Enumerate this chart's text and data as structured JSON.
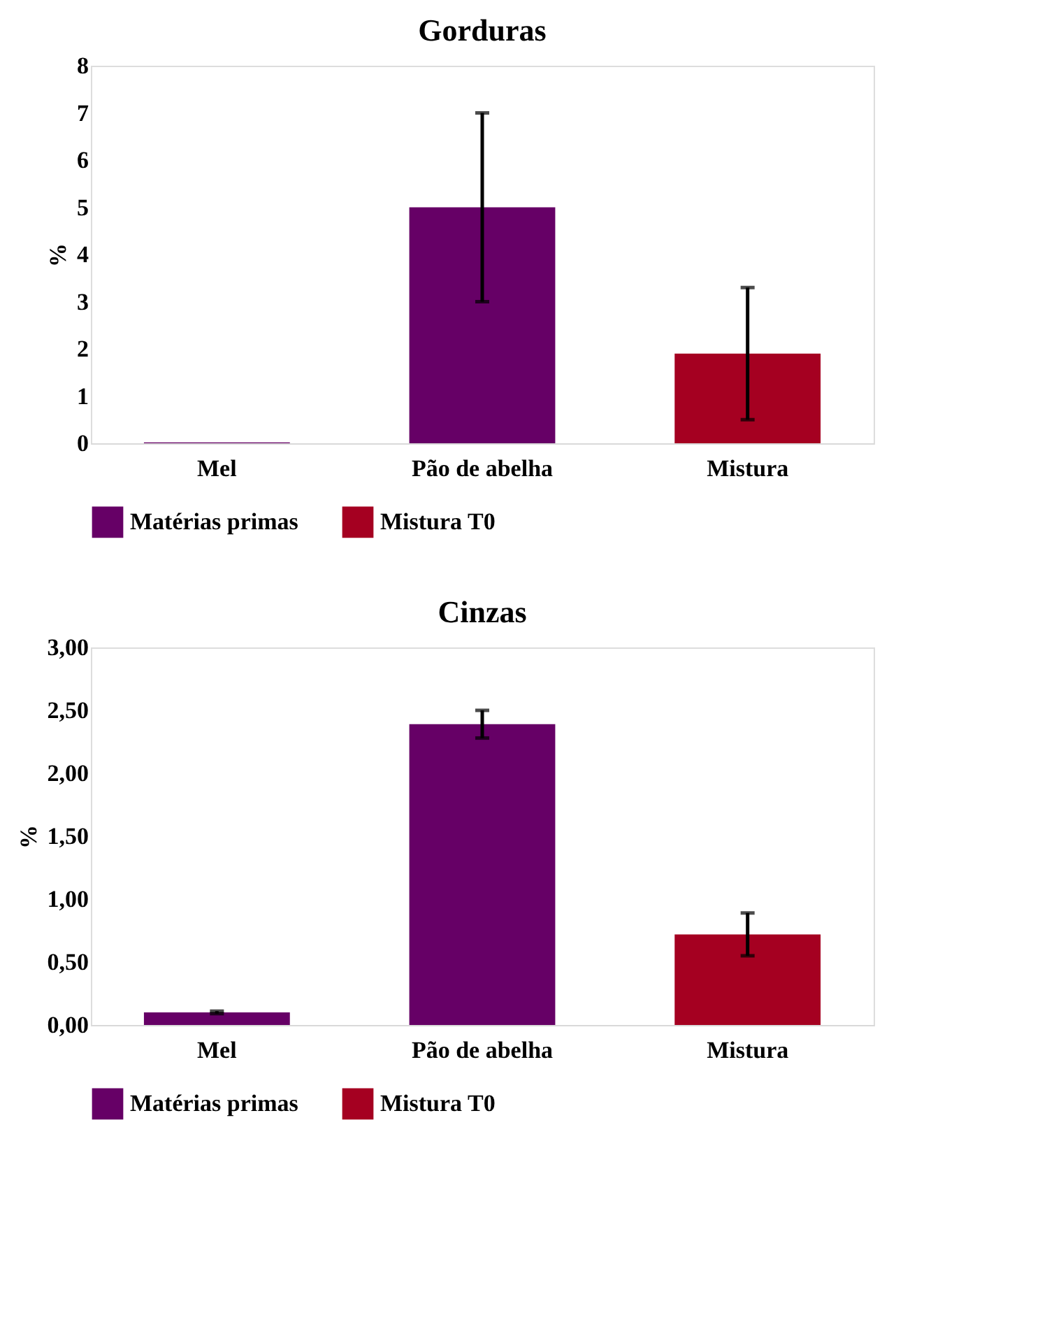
{
  "chart_data": [
    {
      "type": "bar",
      "title": "Gorduras",
      "ylabel": "%",
      "categories": [
        "Mel",
        "Pão de abelha",
        "Mistura"
      ],
      "series": [
        {
          "name": "Matérias primas",
          "color": "#660066",
          "values": [
            0.02,
            5.0,
            null
          ],
          "errors": [
            null,
            2.0,
            null
          ]
        },
        {
          "name": "Mistura T0",
          "color": "#a50021",
          "values": [
            null,
            null,
            1.9
          ],
          "errors": [
            null,
            null,
            1.4
          ]
        }
      ],
      "ylim": [
        0,
        8
      ],
      "yticks": [
        0,
        1,
        2,
        3,
        4,
        5,
        6,
        7,
        8
      ],
      "grid": false,
      "legend": "bottom"
    },
    {
      "type": "bar",
      "title": "Cinzas",
      "ylabel": "%",
      "categories": [
        "Mel",
        "Pão de abelha",
        "Mistura"
      ],
      "series": [
        {
          "name": "Matérias primas",
          "color": "#660066",
          "values": [
            0.1,
            2.39,
            null
          ],
          "errors": [
            0.01,
            0.11,
            null
          ]
        },
        {
          "name": "Mistura T0",
          "color": "#a50021",
          "values": [
            null,
            null,
            0.72
          ],
          "errors": [
            null,
            null,
            0.17
          ]
        }
      ],
      "ylim": [
        0,
        3
      ],
      "yticks": [
        {
          "value": 0,
          "label": "0,00"
        },
        {
          "value": 0.5,
          "label": "0,50"
        },
        {
          "value": 1,
          "label": "1,00"
        },
        {
          "value": 1.5,
          "label": "1,50"
        },
        {
          "value": 2,
          "label": "2,00"
        },
        {
          "value": 2.5,
          "label": "2,50"
        },
        {
          "value": 3,
          "label": "3,00"
        }
      ],
      "grid": false,
      "legend": "bottom"
    }
  ]
}
